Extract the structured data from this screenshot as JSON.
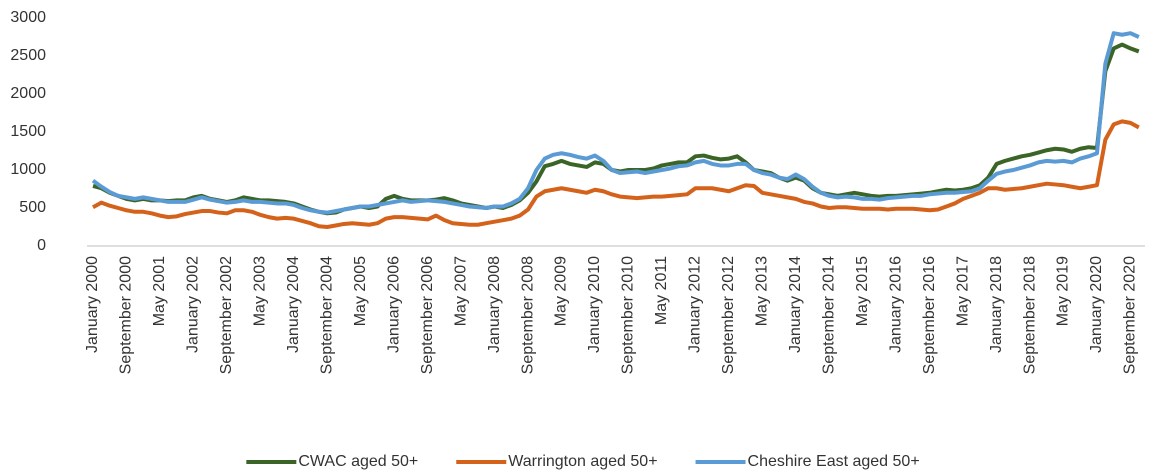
{
  "chart_data": {
    "type": "line",
    "categories": [
      "January 2000",
      null,
      null,
      null,
      "September 2000",
      null,
      null,
      null,
      "May 2001",
      null,
      null,
      null,
      "January 2002",
      null,
      null,
      null,
      "September 2002",
      null,
      null,
      null,
      "May 2003",
      null,
      null,
      null,
      "January 2004",
      null,
      null,
      null,
      "September 2004",
      null,
      null,
      null,
      "May 2005",
      null,
      null,
      null,
      "January 2006",
      null,
      null,
      null,
      "September 2006",
      null,
      null,
      null,
      "May 2007",
      null,
      null,
      null,
      "January 2008",
      null,
      null,
      null,
      "September 2008",
      null,
      null,
      null,
      "May 2009",
      null,
      null,
      null,
      "January 2010",
      null,
      null,
      null,
      "September 2010",
      null,
      null,
      null,
      "May 2011",
      null,
      null,
      null,
      "January 2012",
      null,
      null,
      null,
      "September 2012",
      null,
      null,
      null,
      "May 2013",
      null,
      null,
      null,
      "January 2014",
      null,
      null,
      null,
      "September 2014",
      null,
      null,
      null,
      "May 2015",
      null,
      null,
      null,
      "January 2016",
      null,
      null,
      null,
      "September 2016",
      null,
      null,
      null,
      "May 2017",
      null,
      null,
      null,
      "January 2018",
      null,
      null,
      null,
      "September 2018",
      null,
      null,
      null,
      "May 2019",
      null,
      null,
      null,
      "January 2020",
      null,
      null,
      null,
      "September 2020",
      null
    ],
    "series": [
      {
        "name": "CWAC aged 50+",
        "color": "#3b6527",
        "values": [
          790,
          760,
          700,
          660,
          620,
          600,
          620,
          600,
          600,
          590,
          600,
          600,
          640,
          660,
          620,
          600,
          580,
          600,
          640,
          620,
          600,
          600,
          590,
          580,
          560,
          520,
          480,
          450,
          430,
          440,
          480,
          500,
          520,
          500,
          520,
          620,
          660,
          620,
          600,
          600,
          600,
          610,
          630,
          600,
          560,
          540,
          520,
          500,
          520,
          500,
          540,
          600,
          700,
          850,
          1050,
          1080,
          1120,
          1080,
          1060,
          1040,
          1100,
          1080,
          1000,
          980,
          1000,
          1000,
          1000,
          1020,
          1060,
          1080,
          1100,
          1100,
          1180,
          1190,
          1160,
          1140,
          1150,
          1180,
          1100,
          1000,
          980,
          960,
          900,
          860,
          900,
          860,
          760,
          700,
          680,
          660,
          680,
          700,
          680,
          660,
          650,
          660,
          660,
          670,
          680,
          690,
          700,
          720,
          740,
          730,
          740,
          760,
          800,
          900,
          1080,
          1120,
          1150,
          1180,
          1200,
          1230,
          1260,
          1280,
          1270,
          1240,
          1280,
          1300,
          1290,
          2300,
          2600,
          2650,
          2600,
          2560
        ]
      },
      {
        "name": "Warrington aged 50+",
        "color": "#d4621b",
        "values": [
          510,
          570,
          530,
          500,
          470,
          450,
          450,
          430,
          400,
          380,
          390,
          420,
          440,
          460,
          460,
          440,
          430,
          470,
          470,
          450,
          410,
          380,
          360,
          370,
          360,
          330,
          300,
          260,
          250,
          270,
          290,
          300,
          290,
          280,
          300,
          360,
          380,
          380,
          370,
          360,
          350,
          400,
          340,
          300,
          290,
          280,
          280,
          300,
          320,
          340,
          360,
          400,
          480,
          650,
          720,
          740,
          760,
          740,
          720,
          700,
          740,
          720,
          680,
          650,
          640,
          630,
          640,
          650,
          650,
          660,
          670,
          680,
          760,
          760,
          760,
          740,
          720,
          760,
          800,
          790,
          700,
          680,
          660,
          640,
          620,
          580,
          560,
          520,
          500,
          510,
          510,
          500,
          490,
          490,
          490,
          480,
          490,
          490,
          490,
          480,
          470,
          480,
          520,
          560,
          620,
          660,
          700,
          760,
          760,
          740,
          750,
          760,
          780,
          800,
          820,
          810,
          800,
          780,
          760,
          780,
          800,
          1400,
          1600,
          1640,
          1620,
          1560
        ]
      },
      {
        "name": "Cheshire East aged 50+",
        "color": "#5b9bd5",
        "values": [
          860,
          780,
          710,
          660,
          640,
          620,
          640,
          620,
          600,
          580,
          580,
          580,
          610,
          640,
          610,
          590,
          570,
          580,
          600,
          580,
          580,
          570,
          560,
          560,
          540,
          500,
          470,
          450,
          440,
          460,
          480,
          500,
          520,
          520,
          540,
          560,
          580,
          600,
          580,
          590,
          600,
          590,
          580,
          560,
          540,
          520,
          510,
          500,
          520,
          520,
          560,
          620,
          760,
          1000,
          1150,
          1200,
          1220,
          1200,
          1170,
          1150,
          1190,
          1120,
          1000,
          960,
          970,
          980,
          960,
          980,
          1000,
          1020,
          1050,
          1060,
          1100,
          1120,
          1080,
          1060,
          1060,
          1080,
          1080,
          1000,
          960,
          940,
          900,
          880,
          940,
          880,
          780,
          700,
          660,
          640,
          650,
          640,
          620,
          620,
          610,
          630,
          640,
          650,
          660,
          660,
          680,
          690,
          700,
          700,
          710,
          720,
          760,
          860,
          950,
          980,
          1000,
          1030,
          1060,
          1100,
          1120,
          1110,
          1120,
          1100,
          1150,
          1180,
          1220,
          2400,
          2800,
          2780,
          2800,
          2750
        ]
      }
    ],
    "ylim": [
      0,
      3000
    ],
    "yticks": [
      0,
      500,
      1000,
      1500,
      2000,
      2500,
      3000
    ],
    "grid": false,
    "legend": "bottom"
  }
}
